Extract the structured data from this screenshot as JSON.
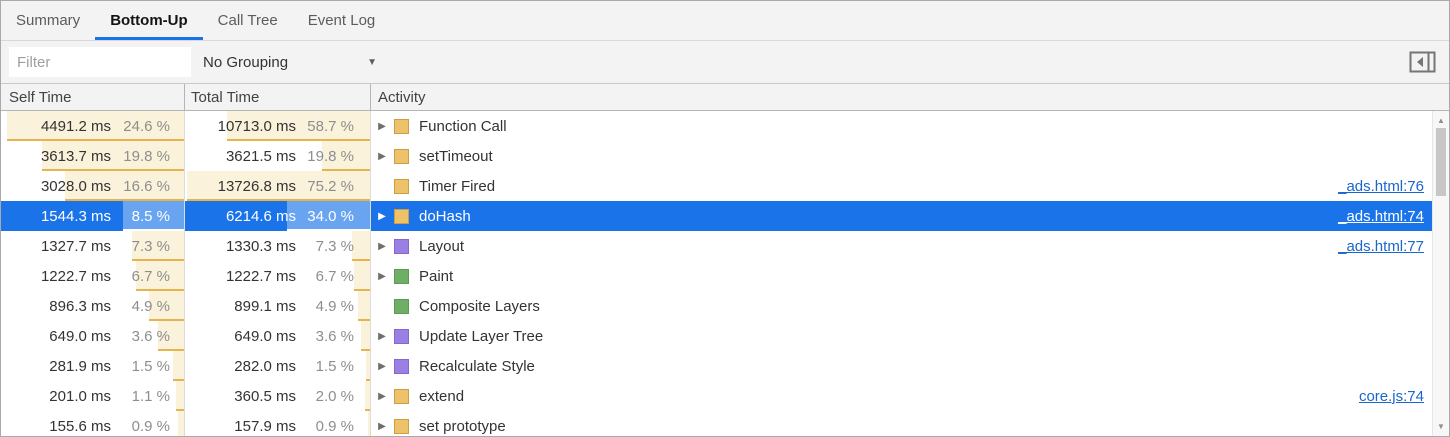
{
  "tabs": [
    {
      "label": "Summary",
      "active": false
    },
    {
      "label": "Bottom-Up",
      "active": true
    },
    {
      "label": "Call Tree",
      "active": false
    },
    {
      "label": "Event Log",
      "active": false
    }
  ],
  "toolbar": {
    "filter_placeholder": "Filter",
    "grouping_selected": "No Grouping"
  },
  "icons": {
    "expand_arrow": "▶",
    "dropdown_arrow": "▼",
    "scroll_up": "▲",
    "scroll_down": "▼"
  },
  "colors": {
    "accent_blue": "#1A73E8",
    "selection_blue": "#1A73E8",
    "link_blue": "#1A66CC",
    "heat_fill": "#FAF2DA",
    "heat_underline": "#E5B44C",
    "scripting_fill": "#EDC26A",
    "scripting_border": "#CDA03F",
    "rendering_fill": "#9B80E3",
    "rendering_border": "#8468CF",
    "painting_fill": "#6FAE66",
    "painting_border": "#5B9B52"
  },
  "table": {
    "columns": [
      {
        "label": "Self Time"
      },
      {
        "label": "Total Time"
      },
      {
        "label": "Activity"
      }
    ],
    "bar_scale_max": {
      "self": 25.5,
      "total": 76
    },
    "rows": [
      {
        "self_ms": "4491.2 ms",
        "self_pct": "24.6 %",
        "self_pct_value": 24.6,
        "total_ms": "10713.0 ms",
        "total_pct": "58.7 %",
        "total_pct_value": 58.7,
        "activity": "Function Call",
        "category": "scripting",
        "expandable": true,
        "link": "",
        "selected": false
      },
      {
        "self_ms": "3613.7 ms",
        "self_pct": "19.8 %",
        "self_pct_value": 19.8,
        "total_ms": "3621.5 ms",
        "total_pct": "19.8 %",
        "total_pct_value": 19.8,
        "activity": "setTimeout",
        "category": "scripting",
        "expandable": true,
        "link": "",
        "selected": false
      },
      {
        "self_ms": "3028.0 ms",
        "self_pct": "16.6 %",
        "self_pct_value": 16.6,
        "total_ms": "13726.8 ms",
        "total_pct": "75.2 %",
        "total_pct_value": 75.2,
        "activity": "Timer Fired",
        "category": "scripting",
        "expandable": false,
        "link": "_ads.html:76",
        "selected": false
      },
      {
        "self_ms": "1544.3 ms",
        "self_pct": "8.5 %",
        "self_pct_value": 8.5,
        "total_ms": "6214.6 ms",
        "total_pct": "34.0 %",
        "total_pct_value": 34.0,
        "activity": "doHash",
        "category": "scripting",
        "expandable": true,
        "link": "_ads.html:74",
        "selected": true
      },
      {
        "self_ms": "1327.7 ms",
        "self_pct": "7.3 %",
        "self_pct_value": 7.3,
        "total_ms": "1330.3 ms",
        "total_pct": "7.3 %",
        "total_pct_value": 7.3,
        "activity": "Layout",
        "category": "rendering",
        "expandable": true,
        "link": "_ads.html:77",
        "selected": false
      },
      {
        "self_ms": "1222.7 ms",
        "self_pct": "6.7 %",
        "self_pct_value": 6.7,
        "total_ms": "1222.7 ms",
        "total_pct": "6.7 %",
        "total_pct_value": 6.7,
        "activity": "Paint",
        "category": "painting",
        "expandable": true,
        "link": "",
        "selected": false
      },
      {
        "self_ms": "896.3 ms",
        "self_pct": "4.9 %",
        "self_pct_value": 4.9,
        "total_ms": "899.1 ms",
        "total_pct": "4.9 %",
        "total_pct_value": 4.9,
        "activity": "Composite Layers",
        "category": "painting",
        "expandable": false,
        "link": "",
        "selected": false
      },
      {
        "self_ms": "649.0 ms",
        "self_pct": "3.6 %",
        "self_pct_value": 3.6,
        "total_ms": "649.0 ms",
        "total_pct": "3.6 %",
        "total_pct_value": 3.6,
        "activity": "Update Layer Tree",
        "category": "rendering",
        "expandable": true,
        "link": "",
        "selected": false
      },
      {
        "self_ms": "281.9 ms",
        "self_pct": "1.5 %",
        "self_pct_value": 1.5,
        "total_ms": "282.0 ms",
        "total_pct": "1.5 %",
        "total_pct_value": 1.5,
        "activity": "Recalculate Style",
        "category": "rendering",
        "expandable": true,
        "link": "",
        "selected": false
      },
      {
        "self_ms": "201.0 ms",
        "self_pct": "1.1 %",
        "self_pct_value": 1.1,
        "total_ms": "360.5 ms",
        "total_pct": "2.0 %",
        "total_pct_value": 2.0,
        "activity": "extend",
        "category": "scripting",
        "expandable": true,
        "link": "core.js:74",
        "selected": false
      },
      {
        "self_ms": "155.6 ms",
        "self_pct": "0.9 %",
        "self_pct_value": 0.9,
        "total_ms": "157.9 ms",
        "total_pct": "0.9 %",
        "total_pct_value": 0.9,
        "activity": "set prototype",
        "category": "scripting",
        "expandable": true,
        "link": "",
        "selected": false
      }
    ]
  }
}
